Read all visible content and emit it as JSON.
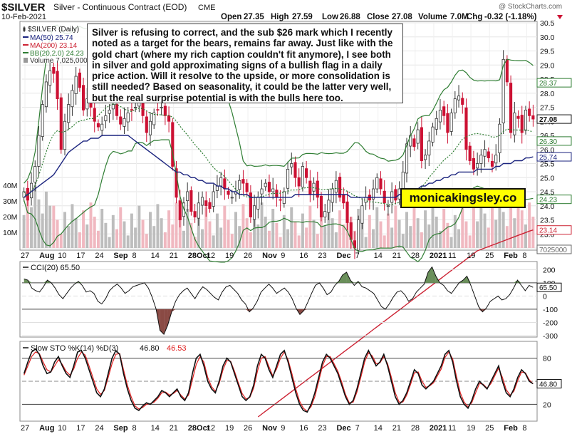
{
  "header": {
    "symbol": "$SILVER",
    "description": "Silver - Continuous Contract (EOD)",
    "exchange": "CME",
    "date": "10-Feb-2021",
    "watermark": "@ StockCharts.com",
    "open_label": "Open",
    "open": "27.35",
    "high_label": "High",
    "high": "27.59",
    "low_label": "Low",
    "low": "26.88",
    "close_label": "Close",
    "close": "27.08",
    "volume_label": "Volume",
    "volume": "7.0M",
    "chg_label": "Chg",
    "chg": "-0.32 (-1.18%)"
  },
  "legend": {
    "symbol": "$SILVER (Daily)",
    "ma50": "MA(50) 25.74",
    "ma200": "MA(200) 23.14",
    "bb": "BB(20,2.0) 24.23",
    "volume": "Volume 7,025,000"
  },
  "caption": "Silver is refusing to correct, and the sub $26 mark which I recently noted as a target for the bears, remains far away. Just like with the gold chart (where my rich caption couldn't fit anymore), I see both in silver and gold approximating signs of a bullish flag in a daily price action. Will it resolve to the upside, or more consolidation is still needed? Based on seasonality, it could be the latter very well, but the real surprise potential is with the bulls here too.",
  "brand": "monicakingsley.co",
  "colors": {
    "up": "#333333",
    "down": "#cc1133",
    "ma50": "#1a237e",
    "ma200": "#cc2233",
    "bb": "#2e7d32",
    "volume": "#f0b8c0",
    "cci_fill": "#6a8f5a",
    "cci_neg_fill": "#8a4a44",
    "sto_k": "#111111",
    "sto_d": "#e02020"
  },
  "x_labels": [
    "27",
    "Aug",
    "10",
    "17",
    "24",
    "Sep",
    "8",
    "14",
    "21",
    "28Oct",
    "12",
    "19",
    "26",
    "Nov",
    "9",
    "16",
    "23",
    "Dec",
    "7",
    "14",
    "21",
    "28",
    "2021",
    "11",
    "19",
    "25",
    "Feb",
    "8"
  ],
  "price_axis": {
    "ticks": [
      "22.5",
      "23.0",
      "23.5",
      "24.0",
      "24.5",
      "25.0",
      "25.5",
      "26.0",
      "26.5",
      "27.0",
      "27.5",
      "28.0",
      "28.5",
      "29.0",
      "29.5",
      "30.0",
      "30.5"
    ],
    "min": 22.5,
    "max": 30.5
  },
  "price_badges": [
    {
      "text": "28.37",
      "kind": "bb"
    },
    {
      "text": "27.08",
      "kind": "close"
    },
    {
      "text": "26.30",
      "kind": "bb"
    },
    {
      "text": "25.74",
      "kind": "ma50"
    },
    {
      "text": "24.23",
      "kind": "bb"
    },
    {
      "text": "23.14",
      "kind": "ma200"
    },
    {
      "text": "7025000",
      "kind": "volume"
    }
  ],
  "volume_axis": [
    "10M",
    "20M",
    "30M",
    "40M"
  ],
  "cci": {
    "legend": "CCI(20) 65.50",
    "ticks": [
      "200",
      "100",
      "0",
      "-100",
      "-200",
      "-300"
    ],
    "badge": "65.50",
    "min": -300,
    "max": 250
  },
  "sto": {
    "legend_prefix": "Slow STO %K(14) %D(3)",
    "k_value": "46.80",
    "d_value": "46.53",
    "ticks": [
      "80",
      "20"
    ],
    "badge": "46.80",
    "min": 0,
    "max": 100
  },
  "chart_data": {
    "type": "candlestick",
    "title": "Silver - Continuous Contract (EOD)",
    "close": [
      24.5,
      24.2,
      24.8,
      25.4,
      26.5,
      27.6,
      28.4,
      28.8,
      28.7,
      27.8,
      26.0,
      27.0,
      27.6,
      28.1,
      28.6,
      28.2,
      27.4,
      27.8,
      27.5,
      27.0,
      26.8,
      26.9,
      27.2,
      27.4,
      27.6,
      27.2,
      26.9,
      27.1,
      27.3,
      27.4,
      27.5,
      27.8,
      27.2,
      26.6,
      27.0,
      27.3,
      27.4,
      27.5,
      27.2,
      27.0,
      25.4,
      24.3,
      23.5,
      24.1,
      24.5,
      23.8,
      23.6,
      24.1,
      24.3,
      24.0,
      23.9,
      24.5,
      24.7,
      25.0,
      24.6,
      24.4,
      24.3,
      24.5,
      24.9,
      24.8,
      24.5,
      23.6,
      24.0,
      24.3,
      24.6,
      24.8,
      24.5,
      24.6,
      24.3,
      24.2,
      24.5,
      25.3,
      25.5,
      25.0,
      24.7,
      25.4,
      25.0,
      24.4,
      24.8,
      24.3,
      23.6,
      23.8,
      24.2,
      24.6,
      24.9,
      24.3,
      24.1,
      23.4,
      22.8,
      22.5,
      23.5,
      24.0,
      24.3,
      24.2,
      24.6,
      25.0,
      24.6,
      24.1,
      24.0,
      24.5,
      24.2,
      24.6,
      25.2,
      26.2,
      26.5,
      26.1,
      26.7,
      25.6,
      25.8,
      26.3,
      26.8,
      27.1,
      27.4,
      27.2,
      26.6,
      27.3,
      27.8,
      27.9,
      27.6,
      26.0,
      25.6,
      25.3,
      25.5,
      25.8,
      26.0,
      25.7,
      25.4,
      25.8,
      26.9,
      29.2,
      28.4,
      26.6,
      27.3,
      27.1,
      26.6,
      27.4,
      27.2,
      27.08
    ],
    "ma50": [
      24.3,
      24.4,
      24.5,
      24.6,
      24.7,
      24.8,
      24.9,
      25.0,
      25.1,
      25.3,
      25.5,
      25.7,
      25.9,
      26.0,
      26.1,
      26.2,
      26.3,
      26.3,
      26.4,
      26.4,
      26.4,
      26.5,
      26.5,
      26.5,
      26.5,
      26.5,
      26.5,
      26.5,
      26.5,
      26.4,
      26.3,
      26.2,
      26.1,
      26.0,
      25.9,
      25.8,
      25.7,
      25.6,
      25.5,
      25.4,
      25.3,
      25.2,
      25.2,
      25.1,
      25.1,
      25.0,
      25.0,
      24.9,
      24.9,
      24.8,
      24.8,
      24.8,
      24.7,
      24.7,
      24.6,
      24.6,
      24.5,
      24.5,
      24.4,
      24.4,
      24.4,
      24.3,
      24.3,
      24.3,
      24.3,
      24.3,
      24.3,
      24.3,
      24.3,
      24.3,
      24.3,
      24.3,
      24.3,
      24.4,
      24.4,
      24.4,
      24.4,
      24.4,
      24.4,
      24.4,
      24.4,
      24.4,
      24.4,
      24.4,
      24.4,
      24.4,
      24.4,
      24.4,
      24.3,
      24.3,
      24.3,
      24.3,
      24.3,
      24.3,
      24.3,
      24.3,
      24.3,
      24.3,
      24.3,
      24.3,
      24.3,
      24.4,
      24.4,
      24.5,
      24.5,
      24.6,
      24.6,
      24.7,
      24.7,
      24.8,
      24.8,
      24.9,
      24.9,
      25.0,
      25.0,
      25.1,
      25.1,
      25.2,
      25.2,
      25.2,
      25.2,
      25.2,
      25.3,
      25.3,
      25.3,
      25.3,
      25.3,
      25.4,
      25.4,
      25.5,
      25.5,
      25.5,
      25.6,
      25.6,
      25.6,
      25.7,
      25.7,
      25.74
    ],
    "ma200": [
      16.5,
      16.6,
      16.7,
      16.8,
      16.9,
      17.0,
      17.1,
      17.2,
      17.3,
      17.4,
      17.5,
      17.6,
      17.7,
      17.8,
      17.9,
      18.0,
      18.1,
      18.2,
      18.3,
      18.4,
      18.5,
      18.6,
      18.7,
      18.8,
      18.9,
      19.0,
      19.1,
      19.2,
      19.3,
      19.4,
      19.5,
      19.6,
      19.7,
      19.8,
      19.9,
      20.0,
      20.1,
      20.2,
      20.3,
      20.4,
      20.5,
      20.6,
      20.7,
      20.8,
      20.9,
      21.0,
      21.1,
      21.2,
      21.3,
      21.4,
      21.5,
      21.6,
      21.7,
      21.8,
      21.9,
      22.0,
      22.1,
      22.2,
      22.3,
      22.4,
      22.45,
      22.5,
      22.55,
      22.6,
      22.65,
      22.7,
      22.75,
      22.8,
      22.85,
      22.9,
      22.95,
      23.0,
      23.05,
      23.1,
      23.14
    ],
    "cci": [
      130,
      120,
      60,
      40,
      30,
      70,
      120,
      100,
      60,
      10,
      -20,
      20,
      60,
      90,
      110,
      80,
      30,
      40,
      20,
      -40,
      -60,
      -20,
      40,
      70,
      90,
      60,
      20,
      40,
      70,
      80,
      90,
      100,
      60,
      -10,
      -100,
      -260,
      -290,
      -220,
      -120,
      -40,
      10,
      40,
      60,
      20,
      -20,
      30,
      70,
      50,
      20,
      -10,
      -30,
      30,
      70,
      80,
      50,
      20,
      -30,
      -60,
      -120,
      -90,
      -40,
      30,
      60,
      90,
      60,
      20,
      40,
      60,
      30,
      -20,
      -90,
      -140,
      -110,
      -50,
      20,
      80,
      100,
      60,
      10,
      30,
      80,
      110,
      160,
      180,
      120,
      80,
      110,
      70,
      60,
      40,
      20,
      -30,
      -80,
      -100,
      -60,
      -10,
      30,
      40,
      10,
      -40,
      -20,
      30,
      60,
      90,
      180,
      220,
      150,
      100,
      80,
      40,
      20,
      60,
      100,
      120,
      150,
      80,
      0,
      -80,
      -120,
      -90,
      -40,
      -20,
      0,
      -30,
      -20,
      10,
      60,
      120,
      80,
      40,
      80,
      65.5
    ],
    "sto_k": [
      60,
      75,
      88,
      92,
      85,
      70,
      60,
      62,
      75,
      82,
      70,
      60,
      55,
      70,
      88,
      90,
      80,
      65,
      50,
      35,
      30,
      40,
      60,
      80,
      90,
      85,
      60,
      40,
      25,
      15,
      12,
      18,
      22,
      20,
      25,
      30,
      38,
      35,
      30,
      35,
      40,
      30,
      25,
      35,
      60,
      80,
      85,
      70,
      50,
      40,
      35,
      50,
      70,
      80,
      75,
      60,
      45,
      30,
      25,
      30,
      45,
      70,
      85,
      80,
      65,
      55,
      70,
      85,
      90,
      75,
      55,
      35,
      20,
      12,
      10,
      20,
      35,
      55,
      75,
      85,
      80,
      70,
      60,
      45,
      30,
      20,
      25,
      40,
      60,
      80,
      90,
      80,
      70,
      75,
      85,
      70,
      50,
      30,
      20,
      25,
      35,
      50,
      65,
      60,
      45,
      40,
      45,
      50,
      60,
      70,
      85,
      90,
      75,
      50,
      30,
      20,
      15,
      25,
      40,
      50,
      45,
      40,
      50,
      60,
      70,
      50,
      35,
      30,
      40,
      55,
      65,
      60,
      50,
      46.8
    ],
    "sto_d": [
      58,
      70,
      82,
      88,
      86,
      75,
      65,
      62,
      70,
      78,
      72,
      63,
      58,
      66,
      80,
      88,
      84,
      70,
      55,
      40,
      33,
      38,
      55,
      73,
      85,
      86,
      65,
      45,
      30,
      18,
      14,
      16,
      20,
      21,
      23,
      28,
      35,
      36,
      32,
      34,
      38,
      32,
      27,
      32,
      52,
      72,
      82,
      75,
      55,
      43,
      37,
      47,
      65,
      77,
      76,
      63,
      48,
      34,
      27,
      29,
      41,
      63,
      80,
      82,
      69,
      57,
      66,
      80,
      88,
      78,
      60,
      40,
      24,
      15,
      11,
      17,
      30,
      50,
      70,
      82,
      82,
      73,
      63,
      49,
      33,
      22,
      23,
      36,
      55,
      75,
      87,
      83,
      73,
      74,
      82,
      73,
      55,
      35,
      23,
      23,
      32,
      46,
      61,
      62,
      50,
      42,
      44,
      48,
      57,
      66,
      81,
      88,
      79,
      56,
      35,
      23,
      17,
      22,
      35,
      47,
      46,
      41,
      47,
      57,
      67,
      55,
      39,
      32,
      37,
      51,
      62,
      61,
      52,
      46.53
    ]
  }
}
